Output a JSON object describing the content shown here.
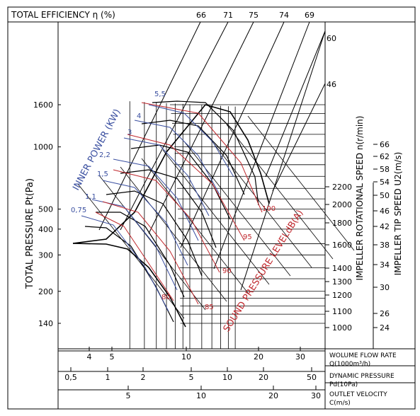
{
  "chart_data": {
    "type": "line",
    "title": "TOTAL EFFICIENCY η (%)",
    "efficiency_labels": [
      "66",
      "71",
      "75",
      "74",
      "69"
    ],
    "ylabel": "TOTAL PRESSURE Pt(Pa)",
    "y_scale": "log",
    "y_ticks": [
      140,
      200,
      300,
      400,
      500,
      1000,
      1600
    ],
    "ylim": [
      115,
      2100
    ],
    "x_axes": [
      {
        "label": "WOLUME FLOW RATE",
        "unit": "Q(1000m³/h)",
        "ticks": [
          "4",
          "5",
          "10",
          "20",
          "30"
        ],
        "range": [
          3.2,
          36
        ],
        "scale": "log"
      },
      {
        "label": "DYNAMIC PRESSURE",
        "unit": "Pd(10Pa)",
        "ticks": [
          "0,5",
          "1",
          "2",
          "5",
          "10",
          "20",
          "50"
        ],
        "range": [
          0.38,
          62
        ],
        "scale": "log"
      },
      {
        "label": "OUTLET VELOCITY",
        "unit": "C(m/s)",
        "ticks": [
          "5",
          "10",
          "20",
          "30"
        ],
        "range": [
          2.6,
          35
        ],
        "scale": "log"
      }
    ],
    "speed_axis": {
      "label": "IMPELLER ROTATIONAL SPEED n(r/min)",
      "ticks": [
        "1000",
        "1100",
        "1200",
        "1300",
        "1400",
        "1600",
        "1800",
        "2000",
        "2200"
      ],
      "top_labels": [
        "60",
        "46"
      ]
    },
    "tip_speed_axis": {
      "label": "IMPELLER TIP SPEED U2(m/s)",
      "ticks": [
        "24",
        "26",
        "30",
        "34",
        "38",
        "42",
        "46",
        "50",
        "54",
        "58",
        "62",
        "66"
      ]
    },
    "power_axis": {
      "label": "INNER POWER (KW)",
      "ticks": [
        "0,75",
        "1,1",
        "1,5",
        "2,2",
        "3",
        "4",
        "5,5"
      ],
      "color": "#3a4fa0"
    },
    "sound_axis": {
      "label": "SOUND PRESSURE LEVELdB(A)",
      "ticks": [
        "80",
        "85",
        "90",
        "95",
        "100"
      ],
      "color": "#c0282d"
    },
    "colors": {
      "black": "#000000",
      "blue": "#3a4fa0",
      "red": "#c0282d"
    }
  }
}
